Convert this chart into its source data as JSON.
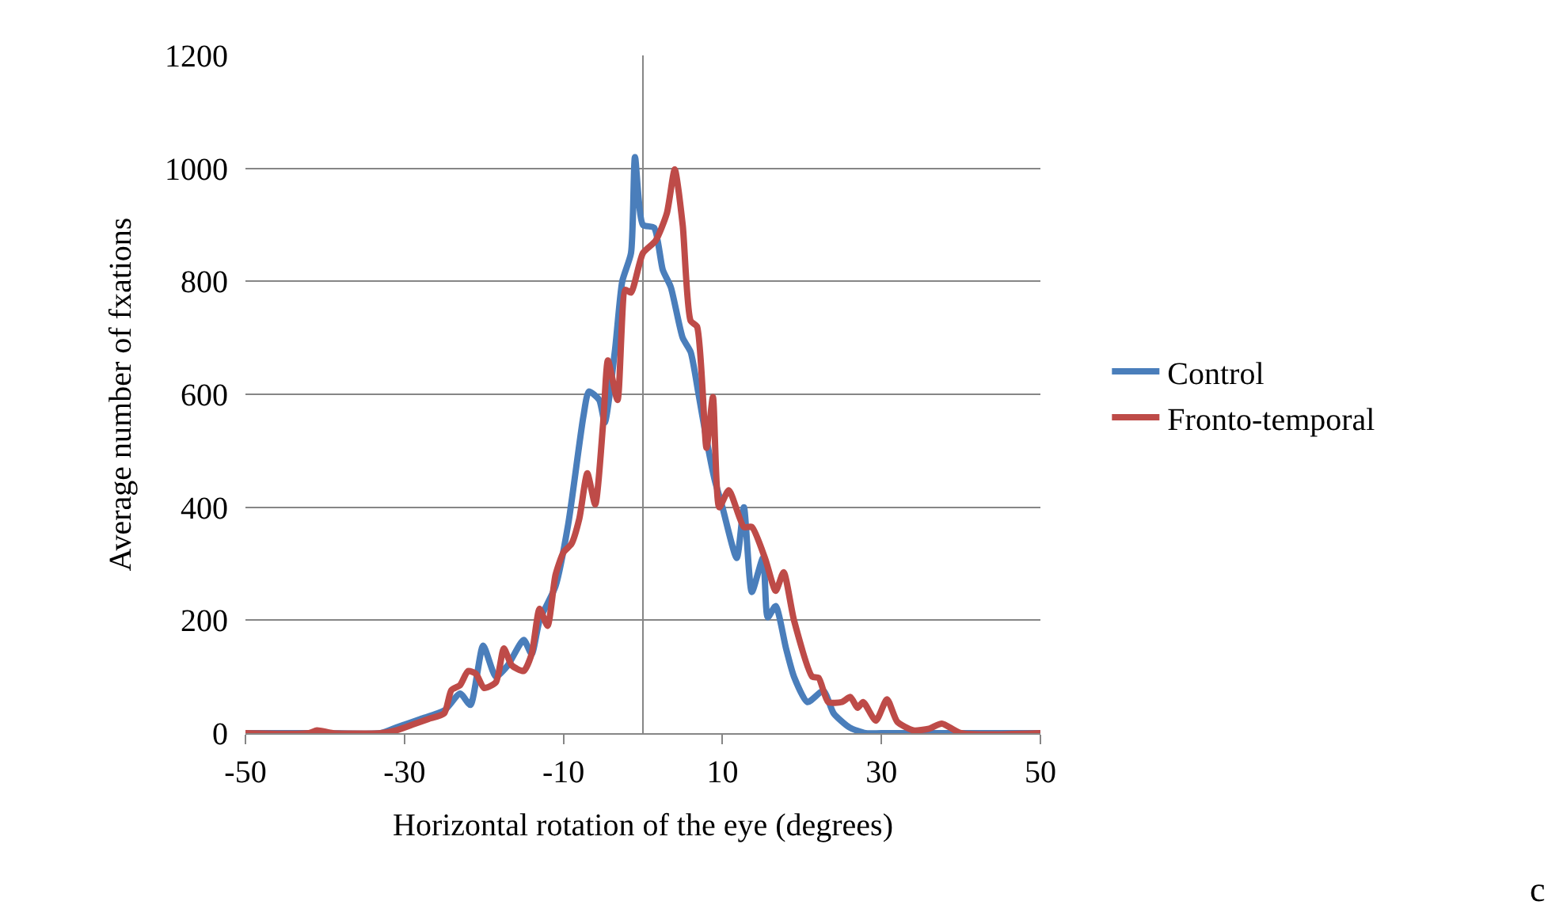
{
  "chart_data": {
    "type": "line",
    "xlabel": "Horizontal rotation of the eye (degrees)",
    "ylabel": "Average number of fxations",
    "xlim": [
      -50,
      50
    ],
    "xticks": [
      -50,
      -30,
      -10,
      10,
      30,
      50
    ],
    "ylim": [
      0,
      1200
    ],
    "yticks": [
      0,
      200,
      400,
      600,
      800,
      1000,
      1200
    ],
    "grid": "y",
    "legend": "right",
    "marker": "none",
    "line_style": "solid",
    "annotations": [
      "c"
    ],
    "series": [
      {
        "name": "Control",
        "color": "#4a7ebb",
        "x": [
          -50,
          -40,
          -33,
          -31,
          -28,
          -25,
          -23,
          -21.7,
          -20.1,
          -18.5,
          -17,
          -15,
          -14,
          -13,
          -11,
          -9.4,
          -7.5,
          -6.8,
          -5.5,
          -4.8,
          -3.5,
          -2.6,
          -1.5,
          -1,
          0,
          1.4,
          2.5,
          3.5,
          5,
          6,
          7,
          8,
          9,
          10,
          11.8,
          12.7,
          13.7,
          15.1,
          15.7,
          16.7,
          18,
          19,
          20.7,
          22.7,
          24,
          26,
          28,
          30,
          40,
          50
        ],
        "values": [
          0,
          0,
          0,
          10,
          25,
          40,
          70,
          50,
          155,
          100,
          120,
          165,
          140,
          200,
          260,
          370,
          560,
          605,
          590,
          550,
          680,
          800,
          850,
          1020,
          900,
          895,
          820,
          790,
          700,
          675,
          600,
          520,
          450,
          400,
          310,
          400,
          250,
          310,
          205,
          225,
          150,
          100,
          55,
          75,
          35,
          10,
          0,
          0,
          0,
          0
        ]
      },
      {
        "name": "Fronto-temporal",
        "color": "#be4b48",
        "x": [
          -50,
          -42,
          -41,
          -39,
          -33,
          -31,
          -29,
          -27,
          -25,
          -24.1,
          -23,
          -22,
          -21,
          -20,
          -18.5,
          -17.5,
          -16.5,
          -15,
          -14,
          -13,
          -12,
          -11,
          -10,
          -9,
          -8,
          -7,
          -6,
          -5,
          -4.4,
          -3.2,
          -2.2,
          -1.5,
          0,
          1.6,
          3,
          4,
          5,
          6,
          6.8,
          8,
          8.8,
          9.6,
          10.8,
          12.7,
          13.7,
          15.4,
          16.7,
          17.7,
          19,
          21.3,
          22.1,
          23.3,
          25,
          26.1,
          27,
          27.7,
          29.3,
          30.7,
          32,
          34,
          36,
          37.6,
          40,
          50
        ],
        "values": [
          0,
          0,
          5,
          0,
          0,
          5,
          15,
          25,
          35,
          76,
          85,
          110,
          105,
          80,
          90,
          150,
          120,
          110,
          140,
          220,
          190,
          280,
          320,
          335,
          380,
          460,
          405,
          550,
          660,
          590,
          785,
          780,
          850,
          872,
          920,
          998,
          900,
          730,
          720,
          505,
          595,
          400,
          430,
          365,
          365,
          308,
          252,
          285,
          200,
          100,
          98,
          55,
          55,
          64,
          45,
          55,
          22,
          60,
          20,
          5,
          8,
          17,
          0,
          0
        ]
      }
    ]
  }
}
